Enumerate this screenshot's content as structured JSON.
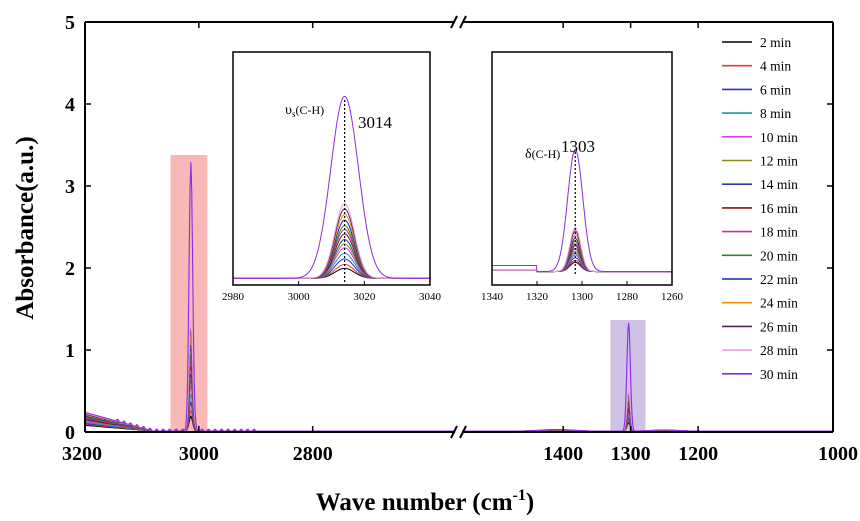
{
  "chart_data": {
    "type": "line",
    "title": "",
    "xlabel": "Wave number (cm",
    "xlabel_sup": "-1",
    "xlabel_close": ")",
    "ylabel": "Absorbance(a.u.)",
    "ylim": [
      0,
      5
    ],
    "y_ticks": [
      "0",
      "1",
      "2",
      "3",
      "4",
      "5"
    ],
    "x_axis_broken": true,
    "x_segments": [
      {
        "xlim": [
          3200,
          2550
        ],
        "ticks": [
          "3200",
          "3000",
          "2800"
        ],
        "tick_values": [
          3200,
          3000,
          2800
        ]
      },
      {
        "xlim": [
          1550,
          1000
        ],
        "ticks": [
          "1400",
          "1300",
          "1200",
          "1000"
        ],
        "tick_values": [
          1400,
          1300,
          1200,
          1000
        ]
      }
    ],
    "legend_placement": "right",
    "series": [
      {
        "name": "2 min",
        "color": "#000000",
        "peak_3014": 0.18,
        "peak_1303": 0.1
      },
      {
        "name": "4 min",
        "color": "#e8343a",
        "peak_3014": 0.25,
        "peak_1303": 0.12
      },
      {
        "name": "6 min",
        "color": "#2b2bdb",
        "peak_3014": 0.35,
        "peak_1303": 0.15
      },
      {
        "name": "8 min",
        "color": "#1a9a9a",
        "peak_3014": 0.45,
        "peak_1303": 0.18
      },
      {
        "name": "10 min",
        "color": "#e040e8",
        "peak_3014": 0.55,
        "peak_1303": 0.2
      },
      {
        "name": "12 min",
        "color": "#8a8a1a",
        "peak_3014": 0.62,
        "peak_1303": 0.22
      },
      {
        "name": "14 min",
        "color": "#2a3aa0",
        "peak_3014": 0.7,
        "peak_1303": 0.25
      },
      {
        "name": "16 min",
        "color": "#8a1010",
        "peak_3014": 0.8,
        "peak_1303": 0.28
      },
      {
        "name": "18 min",
        "color": "#d0348a",
        "peak_3014": 0.88,
        "peak_1303": 0.3
      },
      {
        "name": "20 min",
        "color": "#1a8a3a",
        "peak_3014": 0.95,
        "peak_1303": 0.33
      },
      {
        "name": "22 min",
        "color": "#1a2aa8",
        "peak_3014": 1.05,
        "peak_1303": 0.36
      },
      {
        "name": "24 min",
        "color": "#f0900a",
        "peak_3014": 1.15,
        "peak_1303": 0.4
      },
      {
        "name": "26 min",
        "color": "#5a1a6a",
        "peak_3014": 1.25,
        "peak_1303": 0.44
      },
      {
        "name": "28 min",
        "color": "#f0a0e0",
        "peak_3014": 1.35,
        "peak_1303": 0.48
      },
      {
        "name": "30 min",
        "color": "#8a2be2",
        "peak_3014": 3.28,
        "peak_1303": 1.32
      }
    ],
    "highlight_regions": [
      {
        "xlim": [
          3050,
          2985
        ],
        "color": "#f8b8b8"
      },
      {
        "xlim": [
          1330,
          1278
        ],
        "color": "#cfc2e6"
      }
    ],
    "insets": [
      {
        "xlim": [
          2980,
          3040
        ],
        "ticks": [
          "2980",
          "3000",
          "3020",
          "3040"
        ],
        "tick_values": [
          2980,
          3000,
          3020,
          3040
        ],
        "peak_x": 3014,
        "peak_label": "3014",
        "mode_label_main": "υ",
        "mode_label_sub": "s",
        "mode_label_rest": "(C-H)"
      },
      {
        "xlim": [
          1340,
          1260
        ],
        "ticks": [
          "1340",
          "1320",
          "1300",
          "1280",
          "1260"
        ],
        "tick_values": [
          1340,
          1320,
          1300,
          1280,
          1260
        ],
        "peak_x": 1303,
        "peak_label": "1303",
        "mode_label_main": "δ",
        "mode_label_sub": "",
        "mode_label_rest": "(C-H)"
      }
    ]
  }
}
